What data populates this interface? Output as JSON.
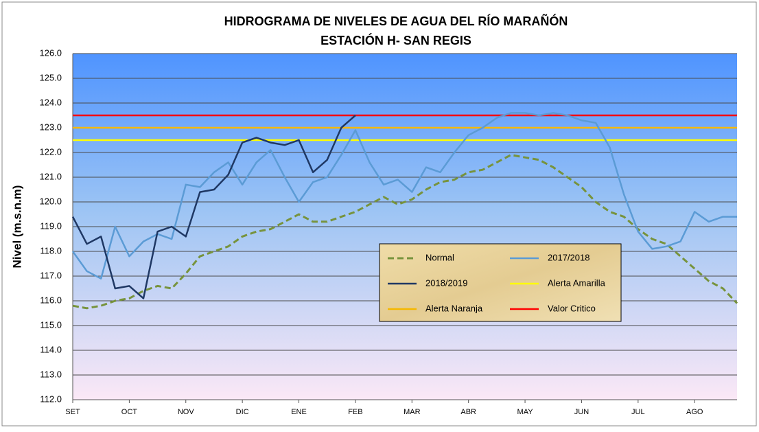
{
  "chart_data": {
    "type": "line",
    "title": "HIDROGRAMA DE NIVELES DE AGUA DEL RÍO MARAÑÓN",
    "subtitle": "ESTACIÓN H- SAN REGIS",
    "y_label": "Nivel (m.s.n.m)",
    "x": [
      0,
      0.25,
      0.5,
      0.75,
      1,
      1.25,
      1.5,
      1.75,
      2,
      2.25,
      2.5,
      2.75,
      3,
      3.25,
      3.5,
      3.75,
      4,
      4.25,
      4.5,
      4.75,
      5,
      5.25,
      5.5,
      5.75,
      6,
      6.25,
      6.5,
      6.75,
      7,
      7.25,
      7.5,
      7.75,
      8,
      8.25,
      8.5,
      8.75,
      9,
      9.25,
      9.5,
      9.75,
      10,
      10.25,
      10.5,
      10.75,
      11,
      11.25,
      11.5,
      11.75
    ],
    "xlim": [
      0,
      11.75
    ],
    "xticks": [
      {
        "value": 0,
        "label": "SET"
      },
      {
        "value": 1,
        "label": "OCT"
      },
      {
        "value": 2,
        "label": "NOV"
      },
      {
        "value": 3,
        "label": "DIC"
      },
      {
        "value": 4,
        "label": "ENE"
      },
      {
        "value": 5,
        "label": "FEB"
      },
      {
        "value": 6,
        "label": "MAR"
      },
      {
        "value": 7,
        "label": "ABR"
      },
      {
        "value": 8,
        "label": "MAY"
      },
      {
        "value": 9,
        "label": "JUN"
      },
      {
        "value": 10,
        "label": "JUL"
      },
      {
        "value": 11,
        "label": "AGO"
      }
    ],
    "ylim": [
      112,
      126
    ],
    "yticks": [
      {
        "value": 112,
        "label": "112.0"
      },
      {
        "value": 113,
        "label": "113.0"
      },
      {
        "value": 114,
        "label": "114.0"
      },
      {
        "value": 115,
        "label": "115.0"
      },
      {
        "value": 116,
        "label": "116.0"
      },
      {
        "value": 117,
        "label": "117.0"
      },
      {
        "value": 118,
        "label": "118.0"
      },
      {
        "value": 119,
        "label": "119.0"
      },
      {
        "value": 120,
        "label": "120.0"
      },
      {
        "value": 121,
        "label": "121.0"
      },
      {
        "value": 122,
        "label": "122.0"
      },
      {
        "value": 123,
        "label": "123.0"
      },
      {
        "value": 124,
        "label": "124.0"
      },
      {
        "value": 125,
        "label": "125.0"
      },
      {
        "value": 126,
        "label": "126.0"
      }
    ],
    "grid": true,
    "series": [
      {
        "name": "Normal",
        "color": "#77933c",
        "dashed": true,
        "values": [
          115.8,
          115.7,
          115.8,
          116.0,
          116.1,
          116.4,
          116.6,
          116.5,
          117.1,
          117.8,
          118.0,
          118.2,
          118.6,
          118.8,
          118.9,
          119.2,
          119.5,
          119.2,
          119.2,
          119.4,
          119.6,
          119.9,
          120.2,
          119.9,
          120.1,
          120.5,
          120.8,
          120.9,
          121.2,
          121.3,
          121.6,
          121.9,
          121.8,
          121.7,
          121.4,
          121.0,
          120.6,
          120.0,
          119.6,
          119.4,
          118.9,
          118.5,
          118.3,
          117.8,
          117.3,
          116.8,
          116.5,
          115.9
        ]
      },
      {
        "name": "2017/2018",
        "color": "#5b9bd5",
        "values": [
          118.0,
          117.2,
          116.9,
          119.0,
          117.8,
          118.4,
          118.7,
          118.5,
          120.7,
          120.6,
          121.2,
          121.6,
          120.7,
          121.6,
          122.1,
          121.0,
          120.0,
          120.8,
          121.0,
          121.9,
          122.9,
          121.6,
          120.7,
          120.9,
          120.4,
          121.4,
          121.2,
          122.0,
          122.7,
          123.0,
          123.4,
          123.6,
          123.6,
          123.5,
          123.6,
          123.5,
          123.3,
          123.2,
          122.2,
          120.3,
          118.8,
          118.1,
          118.2,
          118.4,
          119.6,
          119.2,
          119.4,
          119.4
        ]
      },
      {
        "name": "2018/2019",
        "color": "#1f3864",
        "values": [
          119.4,
          118.3,
          118.6,
          116.5,
          116.6,
          116.1,
          118.8,
          119.0,
          118.6,
          120.4,
          120.5,
          121.1,
          122.4,
          122.6,
          122.4,
          122.3,
          122.5,
          121.2,
          121.7,
          123.0,
          123.5,
          null,
          null,
          null,
          null,
          null,
          null,
          null,
          null,
          null,
          null,
          null,
          null,
          null,
          null,
          null,
          null,
          null,
          null,
          null,
          null,
          null,
          null,
          null,
          null,
          null,
          null,
          null
        ]
      }
    ],
    "thresholds": [
      {
        "name": "Alerta Amarilla",
        "color": "#ffff00",
        "value": 122.5
      },
      {
        "name": "Alerta Naranja",
        "color": "#f5b800",
        "value": 123.0
      },
      {
        "name": "Valor Critico",
        "color": "#ff0000",
        "value": 123.5
      }
    ]
  }
}
